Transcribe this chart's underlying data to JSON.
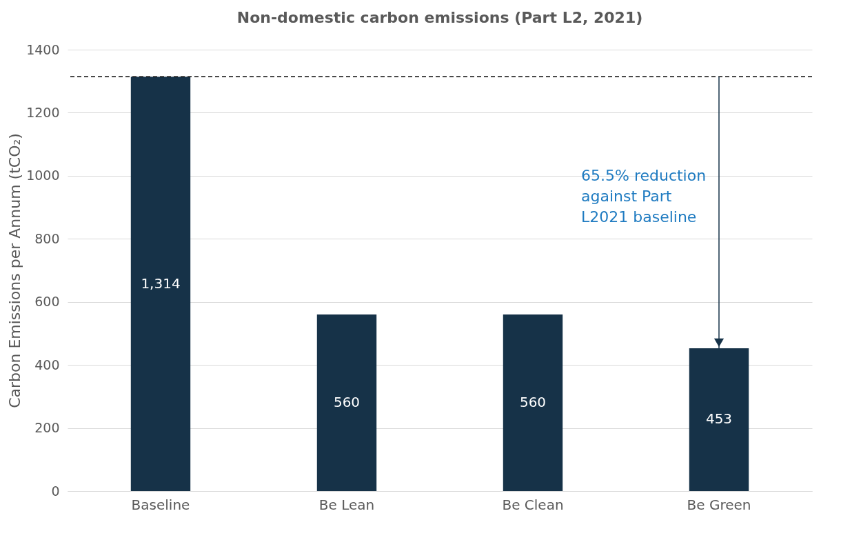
{
  "chart_data": {
    "type": "bar",
    "title": "Non-domestic carbon emissions (Part L2, 2021)",
    "ylabel": "Carbon Emissions per Annum (tCO₂)",
    "categories": [
      "Baseline",
      "Be Lean",
      "Be Clean",
      "Be Green"
    ],
    "series": [
      {
        "color": "#163248",
        "values": [
          1314,
          560,
          560,
          453
        ],
        "value_labels": [
          "1,314",
          "560",
          "560",
          "453"
        ]
      }
    ],
    "ylim": [
      0,
      1400
    ],
    "yticks": [
      0,
      200,
      400,
      600,
      800,
      1000,
      1200,
      1400
    ],
    "grid": "y",
    "ref_lines": [
      {
        "axis": "y",
        "value": 1314,
        "line_style": "dashed",
        "color": "#000000"
      }
    ],
    "annotations": [
      "65.5% reduction\nagainst Part\nL2021 baseline"
    ]
  }
}
